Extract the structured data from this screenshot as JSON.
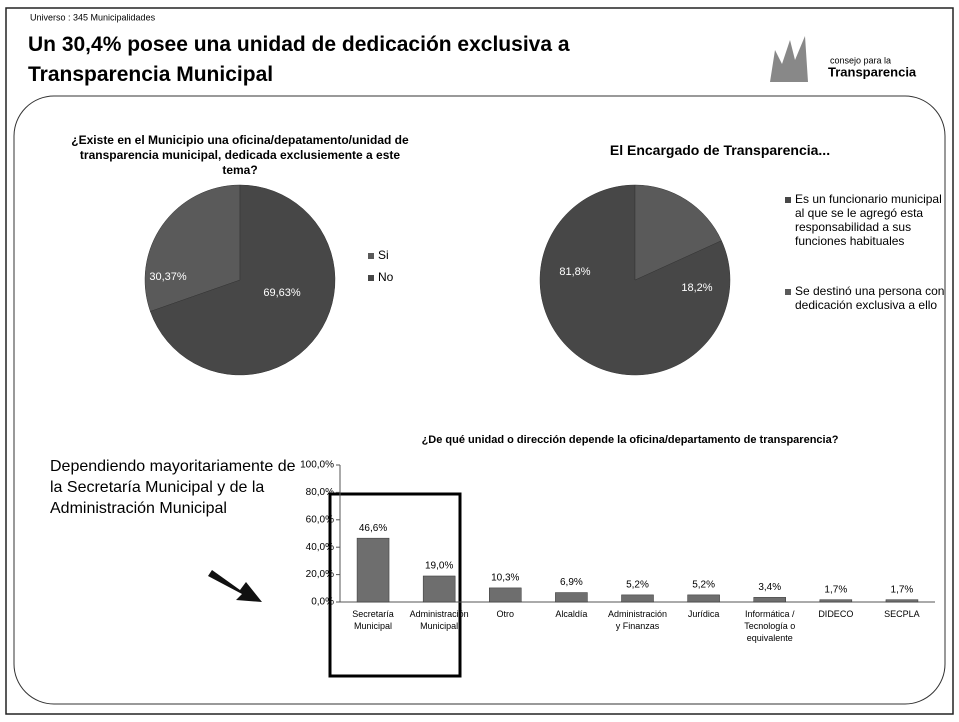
{
  "slide": {
    "universe": "Universo : 345 Municipalidades",
    "title": "Un 30,4% posee una unidad de dedicación exclusiva a Transparencia Municipal",
    "logo_top": "consejo para la",
    "logo_main": "Transparencia",
    "annotation": "Dependiendo mayoritariamente de la Secretaría Municipal y de la Administración Municipal"
  },
  "chart_data": [
    {
      "type": "pie",
      "title": "¿Existe en el Municipio una oficina/depatamento/unidad de transparencia municipal, dedicada exclusiemente a este tema?",
      "categories": [
        "Si",
        "No"
      ],
      "values": [
        30.37,
        69.63
      ],
      "value_labels": [
        "30,37%",
        "69,63%"
      ],
      "colors": [
        "#5a5a5a",
        "#474747"
      ]
    },
    {
      "type": "pie",
      "title": "El Encargado de Transparencia...",
      "categories": [
        "Es un funcionario municipal al que se le agregó esta responsabilidad a sus funciones habituales",
        "Se destinó una persona con dedicación exclusiva a ello"
      ],
      "values": [
        81.8,
        18.2
      ],
      "value_labels": [
        "81,8%",
        "18,2%"
      ],
      "colors": [
        "#474747",
        "#5a5a5a"
      ]
    },
    {
      "type": "bar",
      "title": "¿De qué unidad o dirección depende la oficina/departamento de transparencia?",
      "categories": [
        "Secretaría Municipal",
        "Administración Municipal",
        "Otro",
        "Alcaldía",
        "Administración y Finanzas",
        "Jurídica",
        "Informática / Tecnología o equivalente",
        "DIDECO",
        "SECPLA"
      ],
      "values": [
        46.6,
        19.0,
        10.3,
        6.9,
        5.2,
        5.2,
        3.4,
        1.7,
        1.7
      ],
      "value_labels": [
        "46,6%",
        "19,0%",
        "10,3%",
        "6,9%",
        "5,2%",
        "5,2%",
        "3,4%",
        "1,7%",
        "1,7%"
      ],
      "color": "#6e6e6e",
      "ylim": [
        0,
        100
      ],
      "yticks": [
        {
          "value": 0,
          "label": "0,0%"
        },
        {
          "value": 20,
          "label": "20,0%"
        },
        {
          "value": 40,
          "label": "40,0%"
        },
        {
          "value": 60,
          "label": "60,0%"
        },
        {
          "value": 80,
          "label": "80,0%"
        },
        {
          "value": 100,
          "label": "100,0%"
        }
      ]
    }
  ]
}
